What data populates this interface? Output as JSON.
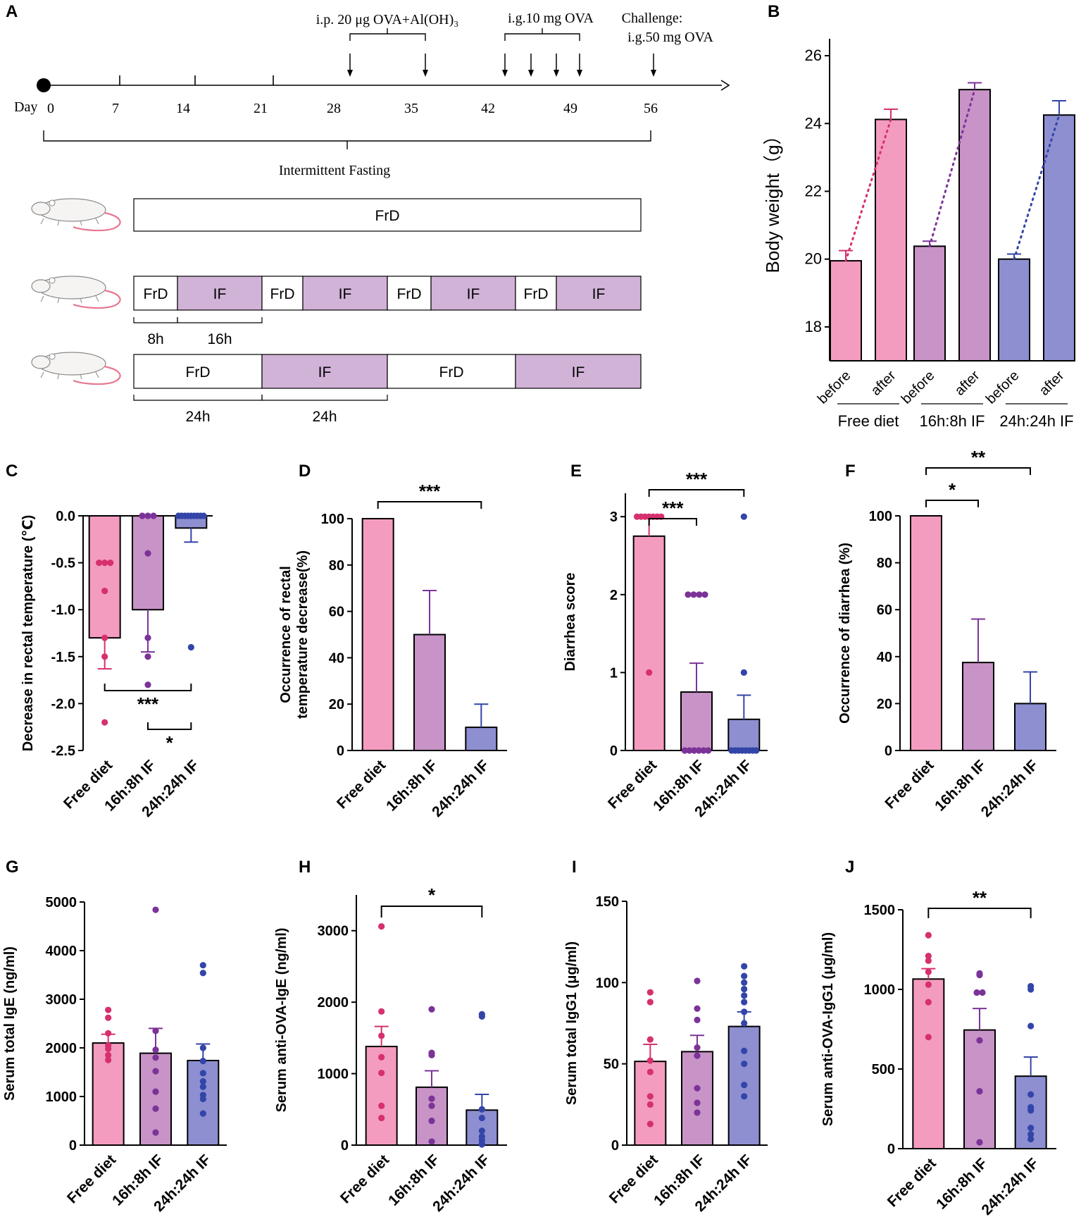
{
  "colors": {
    "free": "#f49cc0",
    "free_dot": "#d6306e",
    "if16": "#c893c6",
    "if16_dot": "#7b3398",
    "if24": "#8e8fd1",
    "if24_dot": "#3345a8",
    "box_if": "#d2b3d8",
    "line": "#111111"
  },
  "panel_letters": [
    "A",
    "B",
    "C",
    "D",
    "E",
    "F",
    "G",
    "H",
    "I",
    "J"
  ],
  "panel_a": {
    "day_prefix": "Day",
    "days": [
      "0",
      "7",
      "14",
      "21",
      "28",
      "35",
      "42",
      "49",
      "56"
    ],
    "ip_label": "i.p. 20 μg OVA+Al(OH)₃",
    "ig_label": "i.g.10 mg OVA",
    "challenge_label": "Challenge:",
    "challenge_dose": "i.g.50 mg OVA",
    "fasting_label": "Intermittent  Fasting",
    "row1": [
      "FrD"
    ],
    "row2": [
      "FrD",
      "IF",
      "FrD",
      "IF",
      "FrD",
      "IF",
      "FrD",
      "IF"
    ],
    "row2_spans": [
      "8h",
      "16h"
    ],
    "row3": [
      "FrD",
      "IF",
      "FrD",
      "IF"
    ],
    "row3_spans": [
      "24h",
      "24h"
    ]
  },
  "chart_data": [
    {
      "id": "B",
      "type": "bar",
      "ylabel": "Body weight（g）",
      "ylim": [
        17,
        26.5
      ],
      "yticks": [
        18,
        20,
        22,
        24,
        26
      ],
      "groups": [
        "Free diet",
        "16h:8h IF",
        "24h:24h IF"
      ],
      "subcategories": [
        "before",
        "after"
      ],
      "values": [
        [
          19.95,
          24.12
        ],
        [
          20.38,
          25.0
        ],
        [
          20.0,
          24.25
        ]
      ],
      "errors": [
        [
          0.3,
          0.3
        ],
        [
          0.15,
          0.2
        ],
        [
          0.15,
          0.42
        ]
      ]
    },
    {
      "id": "C",
      "type": "bar",
      "ylabel": "Decrease in rectal temperature (℃)",
      "ylim": [
        -2.5,
        0
      ],
      "yticks": [
        "0.0",
        "-0.5",
        "-1.0",
        "-1.5",
        "-2.0",
        "-2.5"
      ],
      "categories": [
        "Free diet",
        "16h:8h IF",
        "24h:24h IF"
      ],
      "values": [
        -1.3,
        -1.0,
        -0.13
      ],
      "errors": [
        0.33,
        0.45,
        0.15
      ],
      "points": [
        [
          -0.5,
          -0.5,
          -0.5,
          -0.8,
          -1.3,
          -1.5,
          -2.2
        ],
        [
          0,
          0,
          0,
          -0.4,
          -1.3,
          -1.5,
          -1.8
        ],
        [
          0,
          0,
          0,
          0,
          0,
          0,
          0,
          0,
          0,
          -1.4
        ]
      ],
      "significance": [
        {
          "from": "Free diet",
          "to": "24h:24h IF",
          "label": "***"
        },
        {
          "from": "16h:8h IF",
          "to": "24h:24h IF",
          "label": "*"
        }
      ]
    },
    {
      "id": "D",
      "type": "bar",
      "ylabel_line1": "Occurrence of rectal",
      "ylabel_line2": "temperature decrease(%)",
      "ylim": [
        0,
        100
      ],
      "yticks": [
        0,
        20,
        40,
        60,
        80,
        100
      ],
      "categories": [
        "Free diet",
        "16h:8h IF",
        "24h:24h IF"
      ],
      "values": [
        100,
        50,
        10
      ],
      "errors": [
        0,
        19,
        10
      ],
      "significance": [
        {
          "from": "Free diet",
          "to": "24h:24h IF",
          "label": "***"
        }
      ]
    },
    {
      "id": "E",
      "type": "bar",
      "ylabel": "Diarrhea score",
      "ylim": [
        0,
        3.3
      ],
      "yticks": [
        0,
        1,
        2,
        3
      ],
      "categories": [
        "Free diet",
        "16h:8h IF",
        "24h:24h IF"
      ],
      "values": [
        2.75,
        0.75,
        0.4
      ],
      "errors": [
        0.25,
        0.37,
        0.31
      ],
      "points": [
        [
          3,
          3,
          3,
          3,
          3,
          3,
          3,
          1
        ],
        [
          2,
          2,
          2,
          2,
          0,
          0,
          0,
          0,
          0,
          0
        ],
        [
          3,
          1,
          0,
          0,
          0,
          0,
          0,
          0,
          0,
          0
        ]
      ],
      "significance": [
        {
          "from": "Free diet",
          "to": "16h:8h IF",
          "label": "***"
        },
        {
          "from": "Free diet",
          "to": "24h:24h IF",
          "label": "***"
        }
      ]
    },
    {
      "id": "F",
      "type": "bar",
      "ylabel": "Occurrence of diarrhea (%)",
      "ylim": [
        0,
        100
      ],
      "yticks": [
        0,
        20,
        40,
        60,
        80,
        100
      ],
      "categories": [
        "Free diet",
        "16h:8h IF",
        "24h:24h IF"
      ],
      "values": [
        100,
        37.5,
        20
      ],
      "errors": [
        0,
        18.5,
        13.5
      ],
      "significance": [
        {
          "from": "Free diet",
          "to": "16h:8h IF",
          "label": "*"
        },
        {
          "from": "Free diet",
          "to": "24h:24h IF",
          "label": "**"
        }
      ]
    },
    {
      "id": "G",
      "type": "bar",
      "ylabel": "Serum total IgE (ng/ml)",
      "ylim": [
        0,
        5000
      ],
      "yticks": [
        0,
        1000,
        2000,
        3000,
        4000,
        5000
      ],
      "categories": [
        "Free diet",
        "16h:8h IF",
        "24h:24h IF"
      ],
      "values": [
        2100,
        1890,
        1740
      ],
      "errors": [
        180,
        510,
        340
      ],
      "points": [
        [
          2780,
          2620,
          2300,
          2050,
          1980,
          1850,
          1750
        ],
        [
          4840,
          2350,
          1960,
          1800,
          1520,
          1100,
          750,
          260
        ],
        [
          3700,
          3540,
          2000,
          1730,
          1480,
          1310,
          1200,
          1030,
          950,
          650
        ]
      ]
    },
    {
      "id": "H",
      "type": "bar",
      "ylabel": "Serum anti-OVA-IgE (ng/ml)",
      "ylim": [
        0,
        3500
      ],
      "yticks": [
        0,
        1000,
        2000,
        3000
      ],
      "categories": [
        "Free diet",
        "16h:8h IF",
        "24h:24h IF"
      ],
      "values": [
        1380,
        810,
        490
      ],
      "errors": [
        280,
        230,
        220
      ],
      "points": [
        [
          3060,
          1870,
          1530,
          1230,
          1010,
          550,
          380
        ],
        [
          1900,
          1290,
          1260,
          650,
          550,
          340,
          50
        ],
        [
          1830,
          1800,
          500,
          380,
          200,
          120,
          70,
          20,
          10
        ]
      ],
      "significance": [
        {
          "from": "Free diet",
          "to": "24h:24h IF",
          "label": "*"
        }
      ]
    },
    {
      "id": "I",
      "type": "bar",
      "ylabel": "Serum total IgG1 (μg/ml)",
      "ylim": [
        0,
        150
      ],
      "yticks": [
        0,
        50,
        100,
        150
      ],
      "categories": [
        "Free diet",
        "16h:8h IF",
        "24h:24h IF"
      ],
      "values": [
        51.5,
        57.5,
        73
      ],
      "errors": [
        10.5,
        10,
        9
      ],
      "points": [
        [
          94,
          88,
          65,
          52,
          45,
          30,
          25,
          13
        ],
        [
          101,
          84,
          77,
          60,
          55,
          35,
          26,
          20
        ],
        [
          110,
          104,
          100,
          96,
          92,
          88,
          82,
          75,
          58,
          50,
          37,
          30
        ]
      ]
    },
    {
      "id": "J",
      "type": "bar",
      "ylabel": "Serum anti-OVA-IgG1 (μg/ml)",
      "ylim": [
        0,
        1500
      ],
      "yticks": [
        0,
        500,
        1000,
        1500
      ],
      "categories": [
        "Free diet",
        "16h:8h IF",
        "24h:24h IF"
      ],
      "values": [
        1065,
        745,
        455
      ],
      "errors": [
        65,
        135,
        120
      ],
      "points": [
        [
          1340,
          1210,
          1180,
          1110,
          1030,
          920,
          700
        ],
        [
          1100,
          1090,
          980,
          980,
          680,
          360,
          40
        ],
        [
          1020,
          1000,
          770,
          340,
          260,
          240,
          130,
          90,
          60
        ]
      ],
      "significance": [
        {
          "from": "Free diet",
          "to": "24h:24h IF",
          "label": "**"
        }
      ]
    }
  ]
}
